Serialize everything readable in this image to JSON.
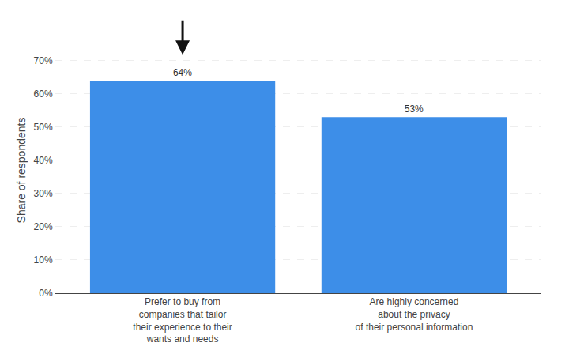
{
  "chart_data": {
    "type": "bar",
    "categories": [
      "Prefer to buy from\ncompanies that tailor\ntheir experience to their\nwants and needs",
      "Are highly concerned\nabout the privacy\nof their personal information"
    ],
    "values": [
      64,
      53
    ],
    "value_labels": [
      "64%",
      "53%"
    ],
    "data_labels": true,
    "color": "#3d8ee8",
    "ylabel": "Share of respondents",
    "ylim": [
      0,
      74
    ],
    "yticks": [
      {
        "value": 0,
        "label": "0%"
      },
      {
        "value": 10,
        "label": "10%"
      },
      {
        "value": 20,
        "label": "20%"
      },
      {
        "value": 30,
        "label": "30%"
      },
      {
        "value": 40,
        "label": "40%"
      },
      {
        "value": 50,
        "label": "50%"
      },
      {
        "value": 60,
        "label": "60%"
      },
      {
        "value": 70,
        "label": "70%"
      }
    ],
    "grid": true
  }
}
